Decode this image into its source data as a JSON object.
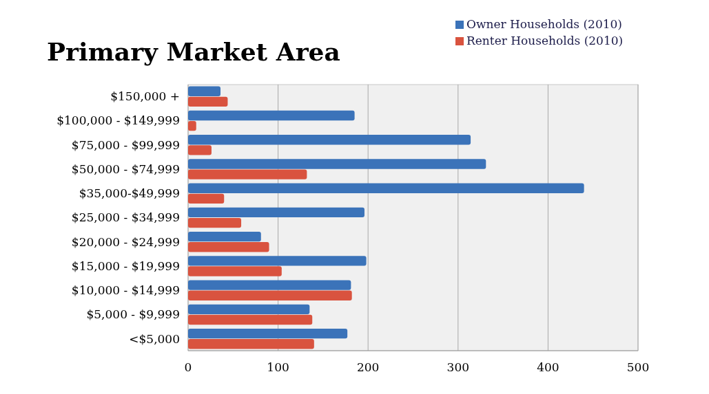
{
  "chart_data": {
    "type": "bar",
    "orientation": "horizontal",
    "title": "Primary Market Area",
    "categories": [
      "$150,000 +",
      "$100,000 - $149,999",
      "$75,000 - $99,999",
      "$50,000 - $74,999",
      "$35,000-$49,999",
      "$25,000 - $34,999",
      "$20,000 - $24,999",
      "$15,000 - $19,999",
      "$10,000 - $14,999",
      "$5,000 - $9,999",
      "<$5,000"
    ],
    "series": [
      {
        "name": "Owner Households (2010)",
        "color": "#3b73b9",
        "values": [
          36,
          185,
          314,
          331,
          440,
          196,
          81,
          198,
          181,
          135,
          177
        ]
      },
      {
        "name": "Renter Households (2010)",
        "color": "#d9533f",
        "values": [
          44,
          9,
          26,
          132,
          40,
          59,
          90,
          104,
          182,
          138,
          140
        ]
      }
    ],
    "xlim": [
      0,
      500
    ],
    "xticks": [
      0,
      100,
      200,
      300,
      400,
      500
    ],
    "grid": "x",
    "legend": "top right"
  }
}
